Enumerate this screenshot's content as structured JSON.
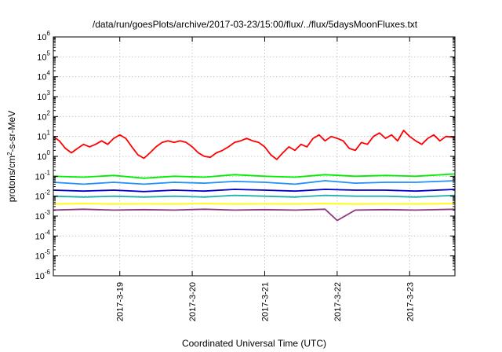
{
  "chart_data": {
    "type": "line",
    "title": "/data/run/goesPlots/archive/2017-03-23/15:00/flux/../flux/5daysMoonFluxes.txt",
    "xlabel": "Coordinated Universal Time (UTC)",
    "ylabel_parts": [
      "protons/cm",
      "2",
      "-s-sr-MeV"
    ],
    "xlim": [
      "2017-03-18 02:00",
      "2017-03-23 15:00"
    ],
    "ylim": [
      1e-06,
      1000000.0
    ],
    "yscale": "log",
    "grid": true,
    "legend": "none",
    "x_ticks": [
      {
        "value": "2017-03-19 00:00",
        "label": "2017-3-19"
      },
      {
        "value": "2017-03-20 00:00",
        "label": "2017-3-20"
      },
      {
        "value": "2017-03-21 00:00",
        "label": "2017-3-21"
      },
      {
        "value": "2017-03-22 00:00",
        "label": "2017-3-22"
      },
      {
        "value": "2017-03-23 00:00",
        "label": "2017-3-23"
      }
    ],
    "y_ticks": [
      -6,
      -5,
      -4,
      -3,
      -2,
      -1,
      0,
      1,
      2,
      3,
      4,
      5,
      6
    ],
    "y_tick_base": "10",
    "series": [
      {
        "color": "#ff0000",
        "points": [
          [
            "2017-03-18 02:00",
            10
          ],
          [
            "2017-03-18 04:00",
            6
          ],
          [
            "2017-03-18 06:00",
            2.5
          ],
          [
            "2017-03-18 08:00",
            1.5
          ],
          [
            "2017-03-18 10:00",
            2.5
          ],
          [
            "2017-03-18 12:00",
            4
          ],
          [
            "2017-03-18 14:00",
            3
          ],
          [
            "2017-03-18 16:00",
            4
          ],
          [
            "2017-03-18 18:00",
            6
          ],
          [
            "2017-03-18 20:00",
            4
          ],
          [
            "2017-03-18 22:00",
            8
          ],
          [
            "2017-03-19 00:00",
            12
          ],
          [
            "2017-03-19 02:00",
            8
          ],
          [
            "2017-03-19 04:00",
            3
          ],
          [
            "2017-03-19 06:00",
            1.2
          ],
          [
            "2017-03-19 08:00",
            0.8
          ],
          [
            "2017-03-19 10:00",
            1.5
          ],
          [
            "2017-03-19 12:00",
            3
          ],
          [
            "2017-03-19 14:00",
            5
          ],
          [
            "2017-03-19 16:00",
            6
          ],
          [
            "2017-03-19 18:00",
            5
          ],
          [
            "2017-03-19 20:00",
            6
          ],
          [
            "2017-03-19 22:00",
            5
          ],
          [
            "2017-03-20 00:00",
            3
          ],
          [
            "2017-03-20 02:00",
            1.5
          ],
          [
            "2017-03-20 04:00",
            1
          ],
          [
            "2017-03-20 06:00",
            0.9
          ],
          [
            "2017-03-20 08:00",
            1.5
          ],
          [
            "2017-03-20 10:00",
            2
          ],
          [
            "2017-03-20 12:00",
            3
          ],
          [
            "2017-03-20 14:00",
            5
          ],
          [
            "2017-03-20 16:00",
            6
          ],
          [
            "2017-03-20 18:00",
            8
          ],
          [
            "2017-03-20 20:00",
            6
          ],
          [
            "2017-03-20 22:00",
            5
          ],
          [
            "2017-03-21 00:00",
            3
          ],
          [
            "2017-03-21 02:00",
            1.2
          ],
          [
            "2017-03-21 04:00",
            0.7
          ],
          [
            "2017-03-21 06:00",
            1.5
          ],
          [
            "2017-03-21 08:00",
            3
          ],
          [
            "2017-03-21 10:00",
            2
          ],
          [
            "2017-03-21 12:00",
            4
          ],
          [
            "2017-03-21 14:00",
            3
          ],
          [
            "2017-03-21 16:00",
            8
          ],
          [
            "2017-03-21 18:00",
            12
          ],
          [
            "2017-03-21 20:00",
            6
          ],
          [
            "2017-03-21 22:00",
            10
          ],
          [
            "2017-03-22 00:00",
            8
          ],
          [
            "2017-03-22 02:00",
            6
          ],
          [
            "2017-03-22 04:00",
            2.5
          ],
          [
            "2017-03-22 06:00",
            2
          ],
          [
            "2017-03-22 08:00",
            5
          ],
          [
            "2017-03-22 10:00",
            4
          ],
          [
            "2017-03-22 12:00",
            10
          ],
          [
            "2017-03-22 14:00",
            15
          ],
          [
            "2017-03-22 16:00",
            8
          ],
          [
            "2017-03-22 18:00",
            12
          ],
          [
            "2017-03-22 20:00",
            6
          ],
          [
            "2017-03-22 22:00",
            20
          ],
          [
            "2017-03-23 00:00",
            10
          ],
          [
            "2017-03-23 02:00",
            6
          ],
          [
            "2017-03-23 04:00",
            4
          ],
          [
            "2017-03-23 06:00",
            8
          ],
          [
            "2017-03-23 08:00",
            12
          ],
          [
            "2017-03-23 10:00",
            6
          ],
          [
            "2017-03-23 12:00",
            10
          ],
          [
            "2017-03-23 15:00",
            9
          ]
        ]
      },
      {
        "color": "#00ee00",
        "points": [
          [
            "2017-03-18 02:00",
            0.1
          ],
          [
            "2017-03-18 12:00",
            0.09
          ],
          [
            "2017-03-18 22:00",
            0.11
          ],
          [
            "2017-03-19 08:00",
            0.08
          ],
          [
            "2017-03-19 18:00",
            0.1
          ],
          [
            "2017-03-20 04:00",
            0.09
          ],
          [
            "2017-03-20 14:00",
            0.12
          ],
          [
            "2017-03-21 00:00",
            0.1
          ],
          [
            "2017-03-21 10:00",
            0.09
          ],
          [
            "2017-03-21 20:00",
            0.12
          ],
          [
            "2017-03-22 06:00",
            0.1
          ],
          [
            "2017-03-22 16:00",
            0.11
          ],
          [
            "2017-03-23 02:00",
            0.1
          ],
          [
            "2017-03-23 15:00",
            0.13
          ]
        ]
      },
      {
        "color": "#1e90ff",
        "points": [
          [
            "2017-03-18 02:00",
            0.05
          ],
          [
            "2017-03-18 12:00",
            0.04
          ],
          [
            "2017-03-18 22:00",
            0.05
          ],
          [
            "2017-03-19 08:00",
            0.04
          ],
          [
            "2017-03-19 18:00",
            0.05
          ],
          [
            "2017-03-20 04:00",
            0.045
          ],
          [
            "2017-03-20 14:00",
            0.055
          ],
          [
            "2017-03-21 00:00",
            0.05
          ],
          [
            "2017-03-21 10:00",
            0.04
          ],
          [
            "2017-03-21 20:00",
            0.06
          ],
          [
            "2017-03-22 06:00",
            0.045
          ],
          [
            "2017-03-22 16:00",
            0.05
          ],
          [
            "2017-03-23 02:00",
            0.05
          ],
          [
            "2017-03-23 15:00",
            0.06
          ]
        ]
      },
      {
        "color": "#0000cd",
        "points": [
          [
            "2017-03-18 02:00",
            0.02
          ],
          [
            "2017-03-18 12:00",
            0.018
          ],
          [
            "2017-03-18 22:00",
            0.02
          ],
          [
            "2017-03-19 08:00",
            0.017
          ],
          [
            "2017-03-19 18:00",
            0.02
          ],
          [
            "2017-03-20 04:00",
            0.018
          ],
          [
            "2017-03-20 14:00",
            0.022
          ],
          [
            "2017-03-21 00:00",
            0.02
          ],
          [
            "2017-03-21 10:00",
            0.018
          ],
          [
            "2017-03-21 20:00",
            0.022
          ],
          [
            "2017-03-22 06:00",
            0.02
          ],
          [
            "2017-03-22 16:00",
            0.02
          ],
          [
            "2017-03-23 02:00",
            0.018
          ],
          [
            "2017-03-23 15:00",
            0.022
          ]
        ]
      },
      {
        "color": "#20b2aa",
        "points": [
          [
            "2017-03-18 02:00",
            0.01
          ],
          [
            "2017-03-18 12:00",
            0.009
          ],
          [
            "2017-03-18 22:00",
            0.01
          ],
          [
            "2017-03-19 08:00",
            0.009
          ],
          [
            "2017-03-19 18:00",
            0.01
          ],
          [
            "2017-03-20 04:00",
            0.009
          ],
          [
            "2017-03-20 14:00",
            0.011
          ],
          [
            "2017-03-21 00:00",
            0.01
          ],
          [
            "2017-03-21 10:00",
            0.009
          ],
          [
            "2017-03-21 20:00",
            0.011
          ],
          [
            "2017-03-22 06:00",
            0.01
          ],
          [
            "2017-03-22 16:00",
            0.01
          ],
          [
            "2017-03-23 02:00",
            0.009
          ],
          [
            "2017-03-23 15:00",
            0.011
          ]
        ]
      },
      {
        "color": "#ffff00",
        "points": [
          [
            "2017-03-18 02:00",
            0.004
          ],
          [
            "2017-03-18 12:00",
            0.0042
          ],
          [
            "2017-03-18 22:00",
            0.004
          ],
          [
            "2017-03-19 08:00",
            0.0041
          ],
          [
            "2017-03-19 18:00",
            0.004
          ],
          [
            "2017-03-20 04:00",
            0.0042
          ],
          [
            "2017-03-20 14:00",
            0.004
          ],
          [
            "2017-03-21 00:00",
            0.0041
          ],
          [
            "2017-03-21 10:00",
            0.004
          ],
          [
            "2017-03-21 20:00",
            0.0042
          ],
          [
            "2017-03-22 06:00",
            0.004
          ],
          [
            "2017-03-22 16:00",
            0.0041
          ],
          [
            "2017-03-23 02:00",
            0.004
          ],
          [
            "2017-03-23 15:00",
            0.0042
          ]
        ]
      },
      {
        "color": "#8b3a7a",
        "points": [
          [
            "2017-03-18 02:00",
            0.002
          ],
          [
            "2017-03-18 12:00",
            0.0022
          ],
          [
            "2017-03-18 22:00",
            0.002
          ],
          [
            "2017-03-19 08:00",
            0.0021
          ],
          [
            "2017-03-19 18:00",
            0.002
          ],
          [
            "2017-03-20 04:00",
            0.0022
          ],
          [
            "2017-03-20 14:00",
            0.002
          ],
          [
            "2017-03-21 00:00",
            0.0021
          ],
          [
            "2017-03-21 10:00",
            0.002
          ],
          [
            "2017-03-21 20:00",
            0.0022
          ],
          [
            "2017-03-22 00:00",
            0.0006
          ],
          [
            "2017-03-22 06:00",
            0.002
          ],
          [
            "2017-03-22 16:00",
            0.0021
          ],
          [
            "2017-03-23 02:00",
            0.002
          ],
          [
            "2017-03-23 15:00",
            0.0022
          ]
        ]
      }
    ]
  }
}
